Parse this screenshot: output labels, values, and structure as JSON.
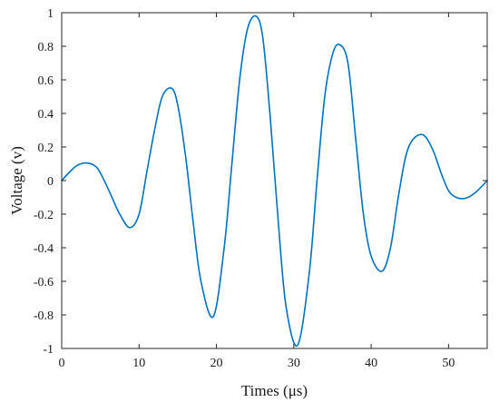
{
  "chart_data": {
    "type": "line",
    "title": "",
    "xlabel": "Times (μs)",
    "ylabel": "Voltage (v)",
    "xlim": [
      0,
      55
    ],
    "ylim": [
      -1,
      1
    ],
    "xticks": [
      0,
      10,
      20,
      30,
      40,
      50
    ],
    "xtick_labels": [
      "0",
      "10",
      "20",
      "30",
      "40",
      "50"
    ],
    "yticks": [
      -1,
      -0.8,
      -0.6,
      -0.4,
      -0.2,
      0,
      0.2,
      0.4,
      0.6,
      0.8,
      1
    ],
    "ytick_labels": [
      "-1",
      "-0.8",
      "-0.6",
      "-0.4",
      "-0.2",
      "0",
      "0.2",
      "0.4",
      "0.6",
      "0.8",
      "1"
    ],
    "grid": false,
    "colors": {
      "series": "#0072bd",
      "axes": "#262626"
    },
    "series": [
      {
        "x": [
          0,
          1,
          2,
          3.2,
          4.5,
          5.5,
          6.5,
          7.5,
          8.8,
          10,
          11,
          12,
          13,
          14.2,
          15,
          16,
          17,
          18,
          19.6,
          21,
          22,
          23,
          24,
          25.1,
          26,
          27,
          28,
          29,
          30.5,
          32,
          33,
          34,
          35,
          35.9,
          37,
          38,
          39,
          40,
          41.4,
          42.5,
          43.5,
          44.5,
          45.5,
          46.8,
          48,
          49,
          50,
          51,
          52.2,
          53.5,
          55
        ],
        "y": [
          0,
          0.05,
          0.09,
          0.105,
          0.08,
          0,
          -0.1,
          -0.2,
          -0.28,
          -0.2,
          0.05,
          0.3,
          0.5,
          0.55,
          0.45,
          0.15,
          -0.25,
          -0.6,
          -0.81,
          -0.4,
          0.1,
          0.6,
          0.9,
          0.98,
          0.85,
          0.35,
          -0.25,
          -0.75,
          -0.98,
          -0.55,
          0,
          0.5,
          0.75,
          0.81,
          0.7,
          0.25,
          -0.2,
          -0.45,
          -0.54,
          -0.4,
          -0.1,
          0.15,
          0.25,
          0.27,
          0.18,
          0.05,
          -0.06,
          -0.1,
          -0.105,
          -0.07,
          0
        ]
      }
    ]
  }
}
